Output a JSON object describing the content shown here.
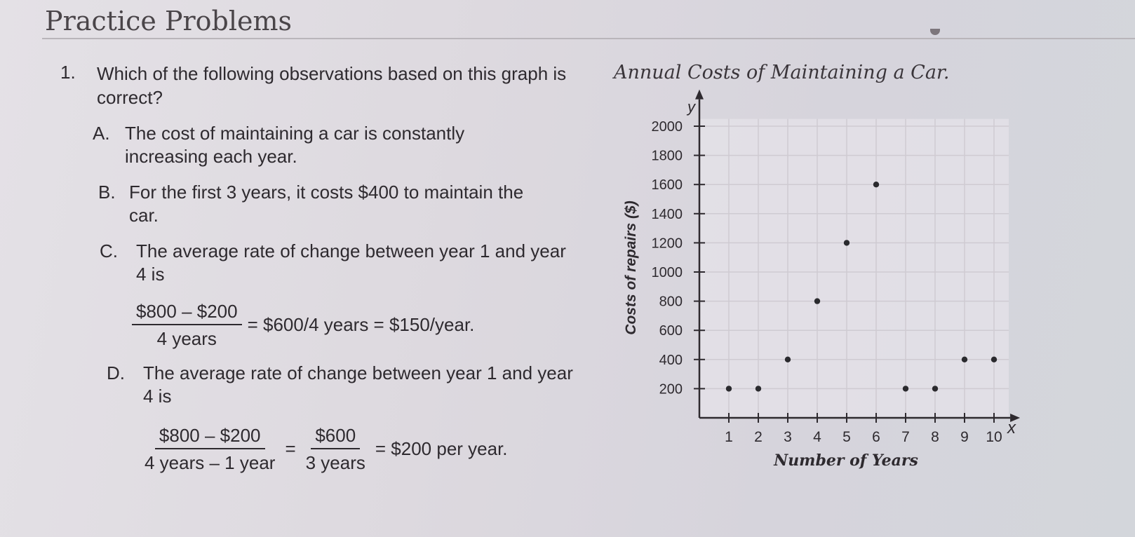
{
  "page": {
    "title": "Practice Problems"
  },
  "question": {
    "number": "1.",
    "text": "Which of the following observations based on this graph is correct?",
    "options": {
      "a": {
        "letter": "A.",
        "text": "The cost of maintaining a car is constantly increasing each year."
      },
      "b": {
        "letter": "B.",
        "text": "For the first 3 years, it costs $400 to maintain the car."
      },
      "c": {
        "letter": "C.",
        "text": "The average rate of change between year 1 and year 4 is",
        "frac_num": "$800 – $200",
        "frac_den": "4 years",
        "rest": "= $600/4 years = $150/year."
      },
      "d": {
        "letter": "D.",
        "text": "The average rate of change between year 1 and year 4 is",
        "frac1_num": "$800 – $200",
        "frac1_den": "4 years – 1 year",
        "eq": "=",
        "frac2_num": "$600",
        "frac2_den": "3 years",
        "rest": "= $200 per year."
      }
    }
  },
  "chart_data": {
    "type": "scatter",
    "title": "Annual Costs of Maintaining a Car.",
    "xlabel": "Number of Years",
    "ylabel": "Costs of repairs ($)",
    "x_axis_letter": "x",
    "y_axis_letter": "y",
    "x": [
      1,
      2,
      3,
      4,
      5,
      6,
      7,
      8,
      9,
      10
    ],
    "y": [
      200,
      200,
      400,
      800,
      1200,
      1600,
      200,
      200,
      400,
      400
    ],
    "xlim": [
      0,
      10.5
    ],
    "ylim": [
      0,
      2050
    ],
    "x_ticks": [
      "1",
      "2",
      "3",
      "4",
      "5",
      "6",
      "7",
      "8",
      "9",
      "10"
    ],
    "y_ticks": [
      "200",
      "400",
      "600",
      "800",
      "1000",
      "1200",
      "1400",
      "1600",
      "1800",
      "2000"
    ],
    "grid": true,
    "colors": {
      "point": "#2a2a2e",
      "grid": "#cfcbd2",
      "axis": "#2e2a2f"
    }
  }
}
